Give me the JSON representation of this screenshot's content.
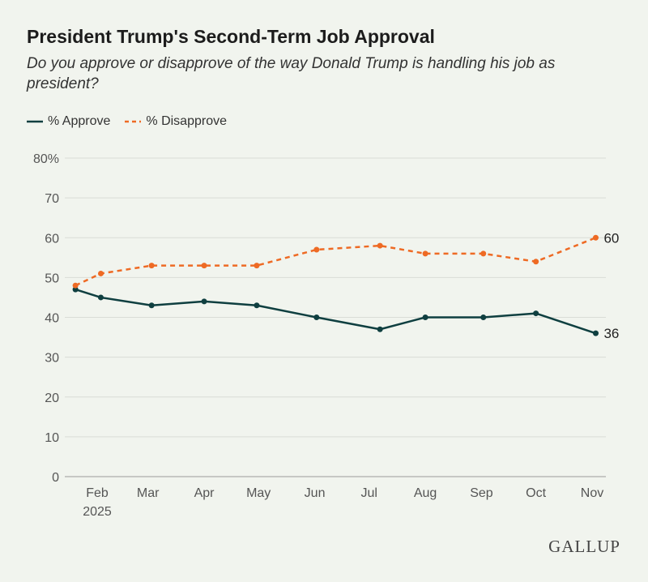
{
  "chart_data": {
    "type": "line",
    "title": "President Trump's Second-Term Job Approval",
    "subtitle": "Do you approve or disapprove of the way Donald Trump is handling his job as president?",
    "xlabel": "",
    "ylabel": "",
    "ylim": [
      0,
      80
    ],
    "yticks": [
      "0",
      "10",
      "20",
      "30",
      "40",
      "50",
      "60",
      "70",
      "80%"
    ],
    "xticks": [
      {
        "label": "Feb",
        "sub": "2025",
        "date": "2025-02-01"
      },
      {
        "label": "Mar",
        "date": "2025-03-01"
      },
      {
        "label": "Apr",
        "date": "2025-04-01"
      },
      {
        "label": "May",
        "date": "2025-05-01"
      },
      {
        "label": "Jun",
        "date": "2025-06-01"
      },
      {
        "label": "Jul",
        "date": "2025-07-01"
      },
      {
        "label": "Aug",
        "date": "2025-08-01"
      },
      {
        "label": "Sep",
        "date": "2025-09-01"
      },
      {
        "label": "Oct",
        "date": "2025-10-01"
      },
      {
        "label": "Nov",
        "date": "2025-11-01"
      }
    ],
    "x": [
      "2025-01-20",
      "2025-02-03",
      "2025-03-03",
      "2025-04-01",
      "2025-04-30",
      "2025-06-02",
      "2025-07-07",
      "2025-08-01",
      "2025-09-02",
      "2025-10-01",
      "2025-11-03"
    ],
    "grid": true,
    "legend_position": "top-left",
    "series": [
      {
        "name": "% Approve",
        "color": "#0f3f40",
        "style": "solid",
        "values": [
          47,
          45,
          43,
          44,
          43,
          40,
          37,
          40,
          40,
          41,
          36
        ],
        "end_label": "36"
      },
      {
        "name": "% Disapprove",
        "color": "#ee6a24",
        "style": "dashed",
        "values": [
          48,
          51,
          53,
          53,
          53,
          57,
          58,
          56,
          56,
          54,
          60
        ],
        "end_label": "60"
      }
    ]
  },
  "source_logo": "GALLUP"
}
